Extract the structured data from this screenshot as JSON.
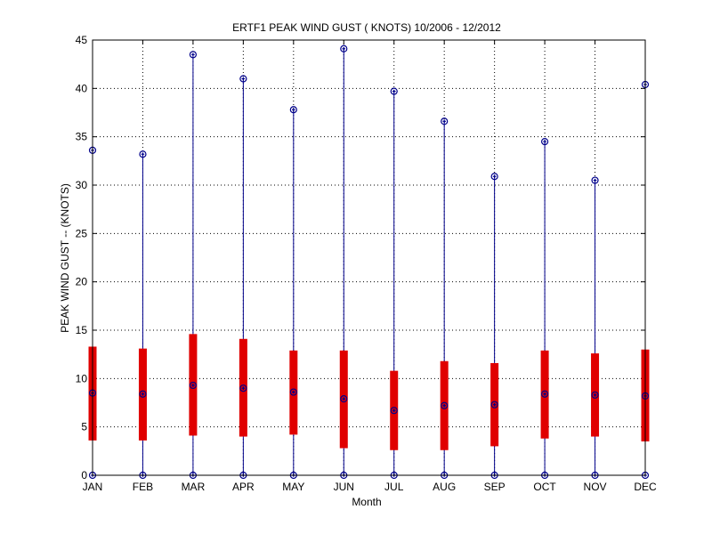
{
  "chart_data": {
    "type": "box",
    "title": "ERTF1  PEAK WIND GUST ( KNOTS) 10/2006 - 12/2012",
    "xlabel": "Month",
    "ylabel": "PEAK WIND GUST -- (KNOTS)",
    "ylim": [
      0,
      45
    ],
    "yticks": [
      "0",
      "5",
      "10",
      "15",
      "20",
      "25",
      "30",
      "35",
      "40",
      "45"
    ],
    "categories": [
      "JAN",
      "FEB",
      "MAR",
      "APR",
      "MAY",
      "JUN",
      "JUL",
      "AUG",
      "SEP",
      "OCT",
      "NOV",
      "DEC"
    ],
    "min": [
      0,
      0,
      0,
      0,
      0,
      0,
      0,
      0,
      0,
      0,
      0,
      0
    ],
    "q1": [
      3.6,
      3.6,
      4.1,
      4.0,
      4.2,
      2.8,
      2.6,
      2.6,
      3.0,
      3.8,
      4.0,
      3.5
    ],
    "median": [
      8.5,
      8.4,
      9.3,
      9.0,
      8.6,
      7.9,
      6.7,
      7.2,
      7.3,
      8.4,
      8.3,
      8.2
    ],
    "q3": [
      13.3,
      13.1,
      14.6,
      14.1,
      12.9,
      12.9,
      10.8,
      11.8,
      11.6,
      12.9,
      12.6,
      13.0
    ],
    "max": [
      33.6,
      33.2,
      43.5,
      41.0,
      37.8,
      44.1,
      39.7,
      36.6,
      30.9,
      34.5,
      30.5,
      40.4
    ],
    "grid": true,
    "colors": {
      "box": "#e00000",
      "whisker": "#00008b",
      "marker": "#00008b",
      "grid": "#000000"
    }
  }
}
